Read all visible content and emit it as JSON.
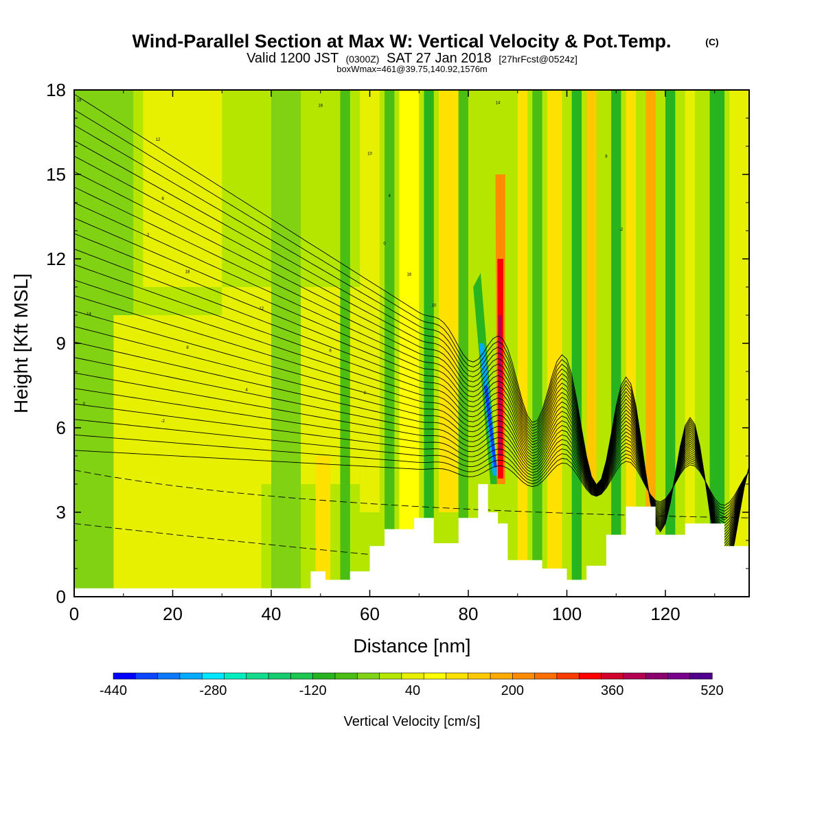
{
  "chart_data": {
    "type": "heatmap",
    "title": "Wind-Parallel Section at Max W: Vertical Velocity & Pot.Temp.",
    "title_mark": "(C)",
    "subtitle": {
      "valid": "Valid 1200 JST",
      "utc": "(0300Z)",
      "date": "SAT 27 Jan 2018",
      "forecast": "[27hrFcst@0524z]"
    },
    "subtitle2": "boxWmax=461@39.75,140.92,1576m",
    "xlabel": "Distance [nm]",
    "ylabel": "Height [Kft MSL]",
    "xlim": [
      0,
      137
    ],
    "ylim": [
      0,
      18
    ],
    "xticks": [
      "0",
      "20",
      "40",
      "60",
      "80",
      "100",
      "120"
    ],
    "yticks": [
      "0",
      "3",
      "6",
      "9",
      "12",
      "15",
      "18"
    ],
    "colorbar": {
      "label": "Vertical Velocity [cm/s]",
      "tick_labels": [
        "-440",
        "-280",
        "-120",
        "40",
        "200",
        "360",
        "520"
      ],
      "colors": [
        "#0000ff",
        "#0a46ff",
        "#0a78ff",
        "#00aaff",
        "#00e6ff",
        "#00eebe",
        "#14dc8c",
        "#14cc6e",
        "#1ec850",
        "#28b41e",
        "#4bbe14",
        "#82d214",
        "#b4e600",
        "#e6f000",
        "#ffff00",
        "#ffe100",
        "#ffc800",
        "#ffaa00",
        "#ff8c00",
        "#ff6e00",
        "#ff3c00",
        "#ff0000",
        "#d2002d",
        "#b40050",
        "#8c006e",
        "#7a008c",
        "#50008c"
      ]
    },
    "contour_labels": [
      "18",
      "16",
      "14",
      "12",
      "10",
      "8",
      "6",
      "4",
      "2",
      "0",
      "-2"
    ],
    "terrain_kft": [
      [
        0,
        0.3
      ],
      [
        46,
        0.3
      ],
      [
        48,
        0.9
      ],
      [
        51,
        0.6
      ],
      [
        56,
        0.9
      ],
      [
        60,
        1.8
      ],
      [
        63,
        2.4
      ],
      [
        69,
        2.8
      ],
      [
        73,
        1.9
      ],
      [
        78,
        2.8
      ],
      [
        82,
        4.0
      ],
      [
        84,
        3.0
      ],
      [
        86,
        2.6
      ],
      [
        88,
        1.3
      ],
      [
        95,
        1.0
      ],
      [
        100,
        0.6
      ],
      [
        104,
        1.1
      ],
      [
        108,
        2.2
      ],
      [
        112,
        3.2
      ],
      [
        118,
        2.2
      ],
      [
        124,
        2.6
      ],
      [
        128,
        2.6
      ],
      [
        132,
        1.8
      ],
      [
        137,
        1.3
      ]
    ]
  }
}
